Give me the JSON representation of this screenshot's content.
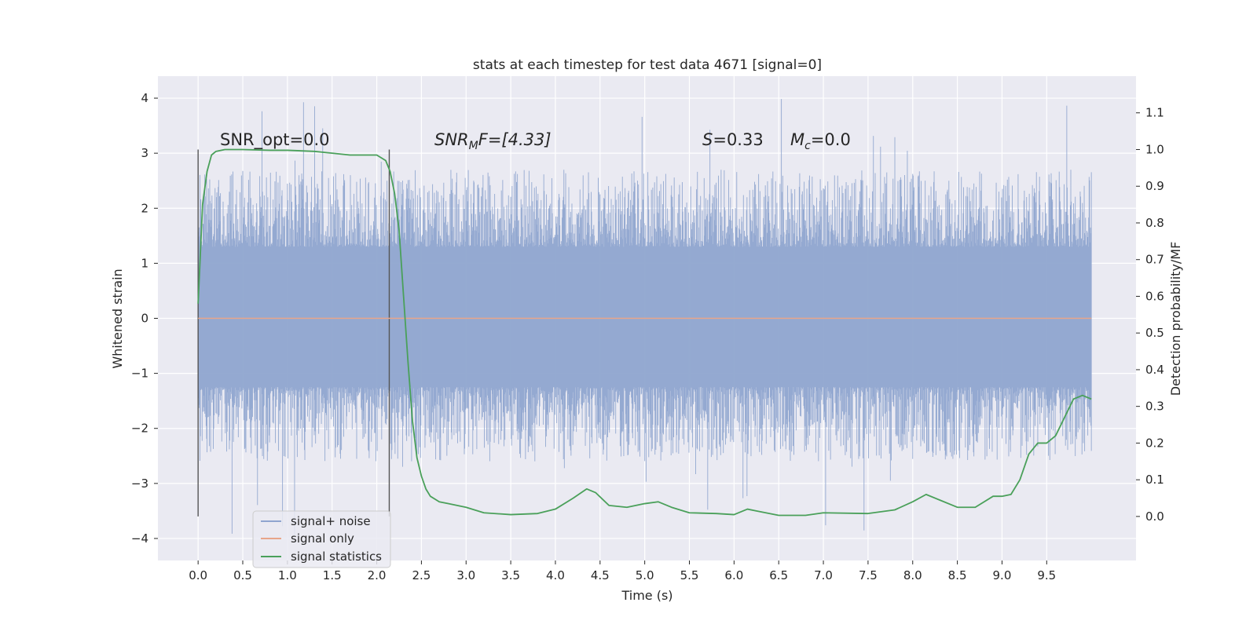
{
  "chart_data": {
    "type": "line",
    "title": "stats at each timestep for test data 4671 [signal=0]",
    "xlabel": "Time (s)",
    "ylabel": "Whitened strain",
    "ylabel_right": "Detection probability/MF",
    "xlim": [
      -0.45,
      10.5
    ],
    "ylim": [
      -4.4,
      4.4
    ],
    "ylim_right": [
      -0.12,
      1.2
    ],
    "x_ticks": [
      "0.0",
      "0.5",
      "1.0",
      "1.5",
      "2.0",
      "2.5",
      "3.0",
      "3.5",
      "4.0",
      "4.5",
      "5.0",
      "5.5",
      "6.0",
      "6.5",
      "7.0",
      "7.5",
      "8.0",
      "8.5",
      "9.0",
      "9.5"
    ],
    "y_ticks": [
      "4",
      "3",
      "2",
      "1",
      "0",
      "−1",
      "−2",
      "−3",
      "−4"
    ],
    "y_ticks_right": [
      "1.1",
      "1.0",
      "0.9",
      "0.8",
      "0.7",
      "0.6",
      "0.5",
      "0.4",
      "0.3",
      "0.2",
      "0.1",
      "0.0"
    ],
    "grid": true,
    "legend_position": "lower-left",
    "annotations": {
      "snr_opt": "SNR_opt=0.0",
      "snr_mf_base": "SNR",
      "snr_mf_sub": "M",
      "snr_mf_rest": "F=[4.33]",
      "s_var": "S",
      "s_val": "=0.33",
      "mc_var": "M",
      "mc_sub": "c",
      "mc_val": "=0.0"
    },
    "vertical_markers": [
      0.0,
      2.14
    ],
    "series": [
      {
        "name": "signal+ noise",
        "axis": "left",
        "color": "#8fa5cf",
        "x_range": [
          0.0,
          10.0
        ],
        "envelope": {
          "core_band": [
            -1.25,
            1.3
          ],
          "typical_peak": [
            -2.6,
            2.7
          ],
          "max": 4.05,
          "min": -3.95
        }
      },
      {
        "name": "signal only",
        "axis": "left",
        "color": "#e8a58a",
        "x": [
          0.0,
          10.0
        ],
        "y": [
          0.0,
          0.0
        ]
      },
      {
        "name": "signal statistics",
        "axis": "right",
        "color": "#4aa05a",
        "x": [
          0.0,
          0.05,
          0.1,
          0.15,
          0.2,
          0.3,
          0.5,
          0.8,
          1.0,
          1.3,
          1.5,
          1.7,
          2.0,
          2.1,
          2.15,
          2.2,
          2.25,
          2.3,
          2.35,
          2.4,
          2.45,
          2.5,
          2.55,
          2.6,
          2.7,
          2.8,
          3.0,
          3.2,
          3.5,
          3.8,
          4.0,
          4.2,
          4.35,
          4.45,
          4.6,
          4.8,
          5.0,
          5.15,
          5.3,
          5.5,
          5.8,
          6.0,
          6.15,
          6.25,
          6.5,
          6.8,
          7.0,
          7.5,
          7.8,
          8.0,
          8.15,
          8.3,
          8.5,
          8.7,
          8.9,
          9.0,
          9.1,
          9.2,
          9.3,
          9.4,
          9.5,
          9.6,
          9.7,
          9.8,
          9.9,
          10.0
        ],
        "y": [
          0.58,
          0.85,
          0.94,
          0.985,
          0.995,
          1.0,
          1.0,
          0.998,
          0.998,
          0.995,
          0.99,
          0.985,
          0.985,
          0.97,
          0.94,
          0.88,
          0.78,
          0.6,
          0.42,
          0.26,
          0.16,
          0.11,
          0.075,
          0.055,
          0.04,
          0.035,
          0.025,
          0.01,
          0.005,
          0.008,
          0.02,
          0.05,
          0.075,
          0.065,
          0.03,
          0.025,
          0.035,
          0.04,
          0.025,
          0.01,
          0.008,
          0.005,
          0.02,
          0.015,
          0.003,
          0.003,
          0.01,
          0.008,
          0.018,
          0.04,
          0.06,
          0.045,
          0.025,
          0.025,
          0.055,
          0.055,
          0.06,
          0.1,
          0.17,
          0.2,
          0.2,
          0.22,
          0.27,
          0.32,
          0.33,
          0.32
        ]
      }
    ]
  }
}
